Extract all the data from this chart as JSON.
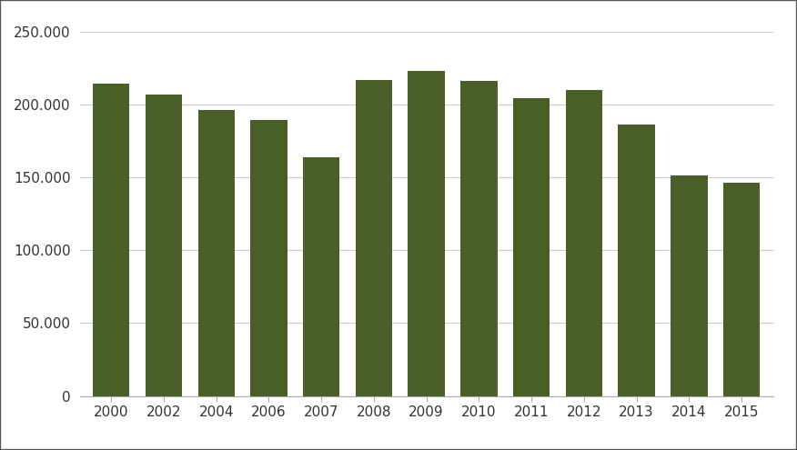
{
  "categories": [
    "2000",
    "2002",
    "2004",
    "2006",
    "2007",
    "2008",
    "2009",
    "2010",
    "2011",
    "2012",
    "2013",
    "2014",
    "2015"
  ],
  "values": [
    214000,
    207000,
    196000,
    189000,
    164000,
    217000,
    223000,
    216000,
    204000,
    210000,
    186000,
    151000,
    146000
  ],
  "bar_color": "#4a5e28",
  "background_color": "#ffffff",
  "border_color": "#555555",
  "ylim": [
    0,
    250000
  ],
  "yticks": [
    0,
    50000,
    100000,
    150000,
    200000,
    250000
  ],
  "ytick_labels": [
    "0",
    "50.000",
    "100.000",
    "150.000",
    "200.000",
    "250.000"
  ],
  "grid_color": "#cccccc",
  "bar_width": 0.7,
  "edge_color": "none",
  "tick_fontsize": 11,
  "tick_color": "#333333"
}
